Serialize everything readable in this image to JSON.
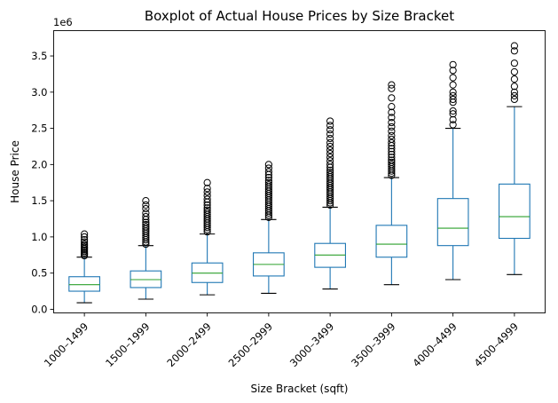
{
  "chart_data": {
    "type": "box",
    "title": "Boxplot of Actual House Prices by Size Bracket",
    "xlabel": "Size Bracket (sqft)",
    "ylabel": "House Price",
    "y_offset_label": "1e6",
    "ylim": [
      -0.05,
      3.85
    ],
    "yticks": [
      0.0,
      0.5,
      1.0,
      1.5,
      2.0,
      2.5,
      3.0,
      3.5
    ],
    "ytick_labels": [
      "0.0",
      "0.5",
      "1.0",
      "1.5",
      "2.0",
      "2.5",
      "3.0",
      "3.5"
    ],
    "grid": false,
    "legend": "none",
    "colors": {
      "box": "#1f77b4",
      "median": "#2ca02c",
      "flier": "#000000"
    },
    "categories": [
      "1000–1499",
      "1500–1999",
      "2000–2499",
      "2500–2999",
      "3000–3499",
      "3500–3999",
      "4000–4499",
      "4500–4999"
    ],
    "boxes": [
      {
        "whislo": 0.09,
        "q1": 0.25,
        "med": 0.34,
        "q3": 0.45,
        "whishi": 0.72,
        "fliers": [
          0.74,
          0.76,
          0.78,
          0.8,
          0.82,
          0.84,
          0.86,
          0.88,
          0.9,
          0.93,
          0.96,
          1.0,
          1.04
        ]
      },
      {
        "whislo": 0.14,
        "q1": 0.3,
        "med": 0.41,
        "q3": 0.53,
        "whishi": 0.88,
        "fliers": [
          0.9,
          0.93,
          0.96,
          0.99,
          1.02,
          1.05,
          1.08,
          1.11,
          1.14,
          1.17,
          1.2,
          1.24,
          1.28,
          1.33,
          1.39,
          1.44,
          1.5
        ]
      },
      {
        "whislo": 0.2,
        "q1": 0.37,
        "med": 0.5,
        "q3": 0.64,
        "whishi": 1.04,
        "fliers": [
          1.07,
          1.1,
          1.13,
          1.16,
          1.19,
          1.22,
          1.25,
          1.28,
          1.31,
          1.34,
          1.37,
          1.4,
          1.44,
          1.48,
          1.52,
          1.57,
          1.62,
          1.67,
          1.75
        ]
      },
      {
        "whislo": 0.22,
        "q1": 0.46,
        "med": 0.62,
        "q3": 0.78,
        "whishi": 1.24,
        "fliers": [
          1.27,
          1.3,
          1.33,
          1.36,
          1.39,
          1.42,
          1.45,
          1.48,
          1.51,
          1.54,
          1.57,
          1.6,
          1.63,
          1.66,
          1.69,
          1.72,
          1.75,
          1.78,
          1.82,
          1.86,
          1.9,
          1.95,
          2.0
        ]
      },
      {
        "whislo": 0.28,
        "q1": 0.58,
        "med": 0.75,
        "q3": 0.91,
        "whishi": 1.41,
        "fliers": [
          1.44,
          1.47,
          1.5,
          1.53,
          1.56,
          1.59,
          1.62,
          1.65,
          1.68,
          1.71,
          1.74,
          1.77,
          1.8,
          1.83,
          1.86,
          1.89,
          1.92,
          1.96,
          2.0,
          2.05,
          2.1,
          2.15,
          2.2,
          2.25,
          2.3,
          2.36,
          2.42,
          2.48,
          2.54,
          2.6
        ]
      },
      {
        "whislo": 0.34,
        "q1": 0.72,
        "med": 0.9,
        "q3": 1.16,
        "whishi": 1.82,
        "fliers": [
          1.85,
          1.88,
          1.91,
          1.94,
          1.97,
          2.0,
          2.03,
          2.06,
          2.1,
          2.14,
          2.18,
          2.22,
          2.26,
          2.3,
          2.35,
          2.4,
          2.46,
          2.52,
          2.58,
          2.65,
          2.72,
          2.8,
          2.92,
          3.05,
          3.1
        ]
      },
      {
        "whislo": 0.41,
        "q1": 0.88,
        "med": 1.12,
        "q3": 1.53,
        "whishi": 2.5,
        "fliers": [
          2.55,
          2.62,
          2.7,
          2.74,
          2.86,
          2.9,
          2.95,
          3.0,
          3.1,
          3.2,
          3.3,
          3.38
        ]
      },
      {
        "whislo": 0.48,
        "q1": 0.98,
        "med": 1.28,
        "q3": 1.73,
        "whishi": 2.8,
        "fliers": [
          2.9,
          2.95,
          3.0,
          3.08,
          3.18,
          3.28,
          3.4,
          3.57,
          3.64
        ]
      }
    ]
  }
}
